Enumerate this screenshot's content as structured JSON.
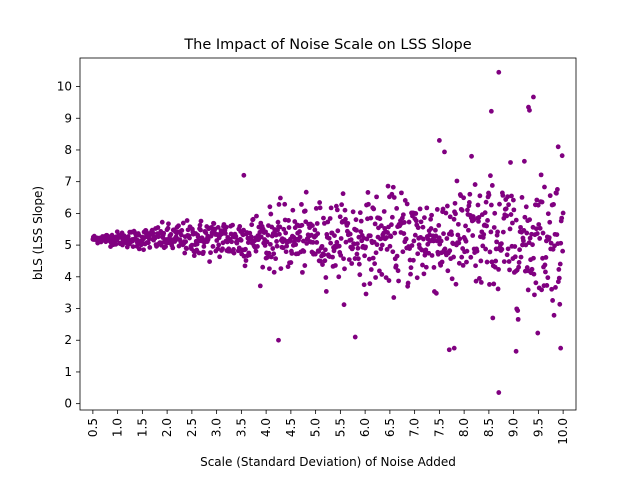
{
  "chart_data": {
    "type": "scatter",
    "title": "The Impact of Noise Scale on LSS Slope",
    "xlabel": "Scale (Standard Deviation) of Noise Added",
    "ylabel": "bLS (LSS Slope)",
    "xlim": [
      0.24,
      10.26
    ],
    "ylim": [
      -0.2,
      10.9
    ],
    "xticks": [
      "0.5",
      "1.0",
      "1.5",
      "2.0",
      "2.5",
      "3.0",
      "3.5",
      "4.0",
      "4.5",
      "5.0",
      "5.5",
      "6.0",
      "6.5",
      "7.0",
      "7.5",
      "8.0",
      "8.5",
      "9.0",
      "9.5",
      "10.0"
    ],
    "yticks": [
      "0",
      "1",
      "2",
      "3",
      "4",
      "5",
      "6",
      "7",
      "8",
      "9",
      "10"
    ],
    "marker_color": "#800080",
    "grid": false,
    "legend": "none",
    "x_range_of_points": [
      0.5,
      10.0
    ],
    "center_slope": 5.2,
    "spread_model": "std ≈ 0.11 × scale",
    "point_count": 1000,
    "notable_points": [
      {
        "x": 8.7,
        "y": 10.45
      },
      {
        "x": 9.4,
        "y": 9.67
      },
      {
        "x": 9.3,
        "y": 9.35
      },
      {
        "x": 9.32,
        "y": 9.25
      },
      {
        "x": 8.55,
        "y": 9.22
      },
      {
        "x": 8.7,
        "y": 0.35
      },
      {
        "x": 4.25,
        "y": 2.0
      },
      {
        "x": 9.05,
        "y": 1.65
      },
      {
        "x": 9.95,
        "y": 1.75
      },
      {
        "x": 7.8,
        "y": 1.75
      },
      {
        "x": 7.7,
        "y": 1.7
      },
      {
        "x": 5.8,
        "y": 2.1
      },
      {
        "x": 7.5,
        "y": 8.3
      },
      {
        "x": 9.9,
        "y": 8.1
      },
      {
        "x": 8.15,
        "y": 7.8
      },
      {
        "x": 3.55,
        "y": 7.2
      }
    ]
  }
}
